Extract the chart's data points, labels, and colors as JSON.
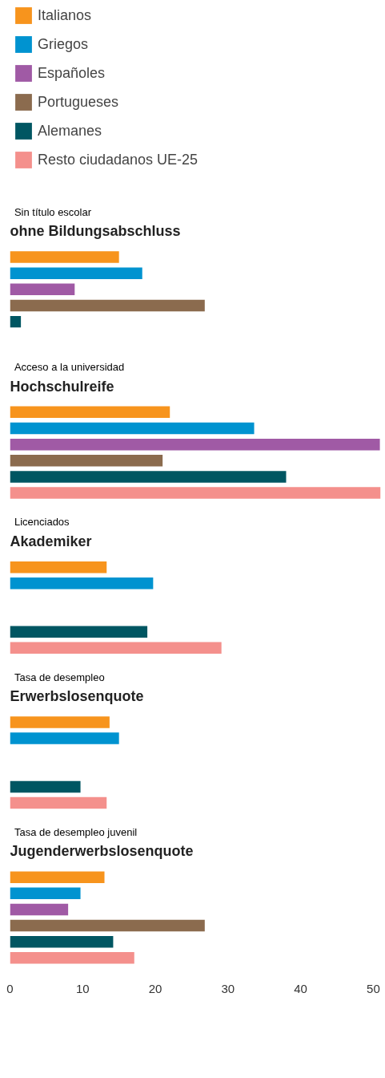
{
  "chart_data": {
    "type": "bar",
    "orientation": "horizontal",
    "legend": "top",
    "grid": false,
    "xlim": [
      0,
      51
    ],
    "xticks": [
      0,
      10,
      20,
      30,
      40,
      50
    ],
    "categories": [
      "ohne Bildungsabschluss",
      "Hochschulreife",
      "Akademiker",
      "Erwerbslosenquote",
      "Jugenderwerbslosenquote"
    ],
    "annotations": [
      "Sin título escolar",
      "Acceso a la universidad",
      "Licenciados",
      "Tasa de desempleo",
      "Tasa de desempleo juvenil"
    ],
    "series": [
      {
        "name": "Italianos",
        "color": "#f7941d",
        "values": [
          15,
          22,
          13.3,
          13.7,
          13
        ]
      },
      {
        "name": "Griegos",
        "color": "#0093d0",
        "values": [
          18.2,
          33.6,
          19.7,
          15,
          9.7
        ]
      },
      {
        "name": "Españoles",
        "color": "#a05aa5",
        "values": [
          8.9,
          50.9,
          null,
          null,
          8
        ]
      },
      {
        "name": "Portugueses",
        "color": "#8b6b4e",
        "values": [
          26.8,
          21,
          null,
          null,
          26.8
        ]
      },
      {
        "name": "Alemanes",
        "color": "#005662",
        "values": [
          1.5,
          38,
          18.9,
          9.7,
          14.2
        ]
      },
      {
        "name": "Resto ciudadanos UE-25",
        "color": "#f4908c",
        "values": [
          null,
          51,
          29.1,
          13.3,
          17.1
        ]
      }
    ]
  }
}
